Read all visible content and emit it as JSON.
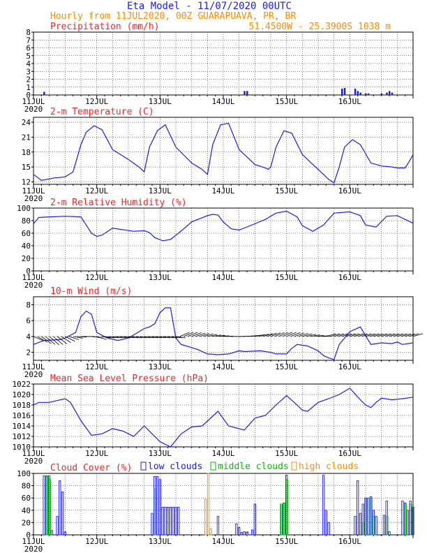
{
  "header": {
    "title": "Eta Model - 11/07/2020 00UTC",
    "subtitle": "Hourly from 11JUL2020, 00Z  GUARAPUAVA, PR, BR",
    "location": "51.4500W - 25.3900S   1038  m"
  },
  "colors": {
    "series": "#1a1aff",
    "title": "#ff2020",
    "header": "#1a1aff",
    "subheader": "#ff8c00",
    "low_clouds": "#1a1aff",
    "middle_clouds": "#00c000",
    "high_clouds": "#ff8c00",
    "wind_arrows": "#000000"
  },
  "chart_data": [
    {
      "type": "bar",
      "title": "Precipitation (mm/h)",
      "x_ticks": [
        "11JUL",
        "12JUL",
        "13JUL",
        "14JUL",
        "15JUL",
        "16JUL"
      ],
      "x_first_year": "2020",
      "ylim": [
        0,
        8
      ],
      "y_ticks": [
        0,
        1,
        2,
        3,
        4,
        5,
        6,
        7,
        8
      ],
      "grid": true,
      "x": [
        4,
        80,
        81,
        117,
        118,
        122,
        123,
        124,
        126,
        127,
        132,
        134,
        135,
        136
      ],
      "values": [
        0.4,
        0.5,
        0.5,
        0.8,
        0.9,
        0.8,
        0.5,
        0.3,
        0.2,
        0.2,
        0.2,
        0.3,
        0.5,
        0.3
      ]
    },
    {
      "type": "line",
      "title": "2-m Temperature (C)",
      "x_ticks": [
        "11JUL",
        "12JUL",
        "13JUL",
        "14JUL",
        "15JUL",
        "16JUL"
      ],
      "x_first_year": "2020",
      "ylim": [
        11.5,
        25
      ],
      "y_ticks": [
        12,
        15,
        18,
        21,
        24
      ],
      "grid": true,
      "x": [
        0,
        3,
        8,
        12,
        15,
        18,
        20,
        23,
        26,
        30,
        36,
        40,
        42,
        44,
        47,
        50,
        54,
        60,
        64,
        66,
        68,
        71,
        74,
        78,
        84,
        88,
        89,
        90,
        92,
        95,
        98,
        102,
        108,
        112,
        114,
        116,
        118,
        121,
        124,
        128,
        132,
        136,
        138,
        141,
        143,
        144
      ],
      "values": [
        13.5,
        12.3,
        12.8,
        13.0,
        14.0,
        19.5,
        22.0,
        23.3,
        22.5,
        18.5,
        16.5,
        15.0,
        14.0,
        19.0,
        22.3,
        23.5,
        19.0,
        15.8,
        14.5,
        13.5,
        19.5,
        23.5,
        23.8,
        18.5,
        15.5,
        14.8,
        14.5,
        15.0,
        19.0,
        22.3,
        21.8,
        17.5,
        14.5,
        12.5,
        11.8,
        15.0,
        19.0,
        20.5,
        19.5,
        15.8,
        15.2,
        15.0,
        14.8,
        14.8,
        16.5,
        17.5
      ]
    },
    {
      "type": "line",
      "title": "2-m Relative Humidity (%)",
      "x_ticks": [
        "11JUL",
        "12JUL",
        "13JUL",
        "14JUL",
        "15JUL",
        "16JUL"
      ],
      "x_first_year": "2020",
      "ylim": [
        0,
        100
      ],
      "y_ticks": [
        0,
        20,
        40,
        60,
        80,
        100
      ],
      "grid": true,
      "x": [
        0,
        2,
        6,
        12,
        18,
        22,
        24,
        26,
        30,
        38,
        42,
        44,
        46,
        49,
        52,
        55,
        57,
        60,
        66,
        68,
        70,
        72,
        75,
        78,
        84,
        88,
        92,
        96,
        100,
        102,
        106,
        110,
        114,
        120,
        124,
        126,
        130,
        134,
        138,
        144
      ],
      "values": [
        75,
        85,
        86,
        87,
        86,
        60,
        55,
        57,
        68,
        63,
        64,
        61,
        53,
        48,
        50,
        60,
        67,
        78,
        88,
        90,
        89,
        78,
        67,
        65,
        75,
        82,
        92,
        95,
        86,
        72,
        63,
        73,
        92,
        94,
        88,
        73,
        70,
        87,
        88,
        76
      ]
    },
    {
      "type": "line",
      "title": "10-m Wind (m/s)",
      "x_ticks": [
        "11JUL",
        "12JUL",
        "13JUL",
        "14JUL",
        "15JUL",
        "16JUL"
      ],
      "x_first_year": "2020",
      "ylim": [
        1,
        9
      ],
      "y_ticks": [
        2,
        4,
        6,
        8
      ],
      "grid": true,
      "x": [
        0,
        4,
        10,
        12,
        16,
        18,
        20,
        22,
        24,
        28,
        32,
        36,
        38,
        40,
        42,
        44,
        46,
        48,
        50,
        52,
        54,
        56,
        58,
        60,
        62,
        66,
        70,
        74,
        78,
        80,
        86,
        90,
        92,
        96,
        98,
        100,
        104,
        106,
        108,
        110,
        112,
        114,
        116,
        120,
        124,
        128,
        132,
        136,
        138,
        140,
        144
      ],
      "values": [
        3.0,
        3.5,
        3.6,
        3.8,
        4.5,
        6.5,
        7.2,
        6.8,
        4.5,
        3.8,
        3.5,
        3.8,
        4.2,
        4.6,
        5.0,
        5.2,
        5.6,
        7.0,
        7.6,
        7.6,
        3.8,
        3.0,
        2.8,
        2.6,
        2.4,
        1.8,
        1.7,
        1.8,
        2.2,
        2.1,
        2.2,
        2.0,
        1.8,
        1.8,
        2.5,
        3.0,
        2.8,
        2.5,
        2.2,
        1.6,
        1.3,
        1.1,
        3.0,
        4.6,
        5.2,
        3.0,
        3.2,
        3.1,
        3.3,
        3.0,
        3.2
      ]
    },
    {
      "type": "line",
      "title": "Mean Sea Level Pressure (hPa)",
      "x_ticks": [
        "11JUL",
        "12JUL",
        "13JUL",
        "14JUL",
        "15JUL",
        "16JUL"
      ],
      "x_first_year": "2020",
      "ylim": [
        1010,
        1022
      ],
      "y_ticks": [
        1010,
        1012,
        1014,
        1016,
        1018,
        1020,
        1022
      ],
      "grid": true,
      "x": [
        0,
        2,
        6,
        12,
        14,
        18,
        22,
        26,
        30,
        34,
        38,
        42,
        48,
        52,
        56,
        60,
        64,
        70,
        74,
        80,
        84,
        88,
        92,
        96,
        100,
        102,
        104,
        108,
        112,
        116,
        120,
        124,
        126,
        128,
        130,
        132,
        136,
        140,
        144
      ],
      "values": [
        1018.0,
        1018.5,
        1018.5,
        1019.2,
        1018.5,
        1015.0,
        1012.2,
        1012.5,
        1013.5,
        1013.0,
        1012.0,
        1014.0,
        1011.0,
        1010.0,
        1012.5,
        1013.8,
        1014.0,
        1016.8,
        1014.0,
        1013.2,
        1015.5,
        1016.0,
        1018.0,
        1019.8,
        1018.0,
        1017.0,
        1016.8,
        1018.5,
        1019.2,
        1020.0,
        1021.2,
        1019.0,
        1018.0,
        1017.5,
        1018.5,
        1019.3,
        1019.0,
        1019.2,
        1019.5
      ]
    },
    {
      "type": "bar",
      "title": "Cloud Cover (%)",
      "legend": [
        "low clouds",
        "middle clouds",
        "high clouds"
      ],
      "x_ticks": [
        "11JUL",
        "12JUL",
        "13JUL",
        "14JUL",
        "15JUL",
        "16JUL"
      ],
      "x_first_year": "2020",
      "ylim": [
        0,
        100
      ],
      "y_ticks": [
        0,
        20,
        40,
        60,
        80,
        100
      ],
      "grid": true,
      "series": [
        {
          "name": "low clouds",
          "x": [
            4,
            5,
            6,
            7,
            9,
            10,
            11,
            12,
            45,
            46,
            47,
            48,
            49,
            50,
            51,
            52,
            53,
            54,
            55,
            70,
            77,
            78,
            79,
            80,
            81,
            83,
            84,
            94,
            95,
            96,
            110,
            111,
            112,
            122,
            123,
            124,
            125,
            126,
            127,
            128,
            129,
            130,
            133,
            134,
            135,
            140,
            141,
            142,
            143,
            144
          ],
          "values": [
            96,
            96,
            96,
            7,
            30,
            88,
            70,
            5,
            35,
            95,
            95,
            90,
            45,
            45,
            45,
            45,
            45,
            45,
            45,
            30,
            18,
            12,
            4,
            5,
            4,
            8,
            50,
            50,
            52,
            97,
            97,
            40,
            20,
            30,
            88,
            35,
            50,
            60,
            60,
            62,
            40,
            30,
            32,
            55,
            5,
            55,
            52,
            40,
            55,
            45
          ]
        },
        {
          "name": "middle clouds",
          "x": [
            5,
            6,
            46,
            81,
            94,
            95,
            96,
            125,
            126,
            128,
            129,
            134,
            141,
            143
          ],
          "values": [
            95,
            90,
            75,
            5,
            50,
            52,
            90,
            20,
            58,
            60,
            30,
            30,
            50,
            50
          ]
        },
        {
          "name": "high clouds",
          "x": [
            65,
            66,
            67
          ],
          "values": [
            58,
            100,
            10
          ]
        }
      ]
    }
  ]
}
